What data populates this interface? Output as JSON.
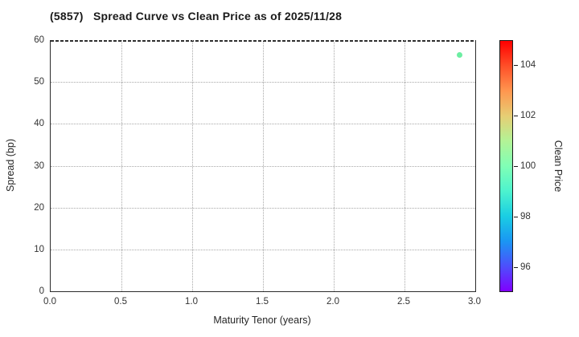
{
  "figure": {
    "background": "#ffffff"
  },
  "chart_data": {
    "type": "scatter",
    "title": "(5857)   Spread Curve vs Clean Price as of 2025/11/28",
    "xlabel": "Maturity Tenor (years)",
    "ylabel": "Spread (bp)",
    "xlim": [
      0.0,
      3.0
    ],
    "ylim": [
      0,
      60
    ],
    "xtick_values": [
      0,
      0.5,
      1,
      1.5,
      2,
      2.5,
      3
    ],
    "xtick_labels": [
      "0.0",
      "0.5",
      "1.0",
      "1.5",
      "2.0",
      "2.5",
      "3.0"
    ],
    "ytick_values": [
      0,
      10,
      20,
      30,
      40,
      50,
      60
    ],
    "ytick_labels": [
      "0",
      "10",
      "20",
      "30",
      "40",
      "50",
      "60"
    ],
    "grid": true,
    "grid_style": "dotted",
    "legend": null,
    "points": [
      {
        "x": 2.89,
        "y": 56.4,
        "clean_price": 100.2,
        "color": "#6ceea2"
      }
    ],
    "colorbar": {
      "label": "Clean Price",
      "min": 95,
      "max": 105,
      "tick_values": [
        96,
        98,
        100,
        102,
        104
      ],
      "tick_labels": [
        "96",
        "98",
        "100",
        "102",
        "104"
      ],
      "colormap": "rainbow",
      "gradient_bottom_to_top": [
        "#8000ff",
        "#4d4ffc",
        "#1a96f3",
        "#1acee3",
        "#4df3ce",
        "#80ffb5",
        "#b3f396",
        "#e6ce74",
        "#ff964f",
        "#ff4f28",
        "#ff0000"
      ]
    }
  },
  "colors": {
    "text": "#262626",
    "tick_text": "#333333",
    "grid": "#a8a8a8",
    "spine": "#2b2b2b"
  }
}
